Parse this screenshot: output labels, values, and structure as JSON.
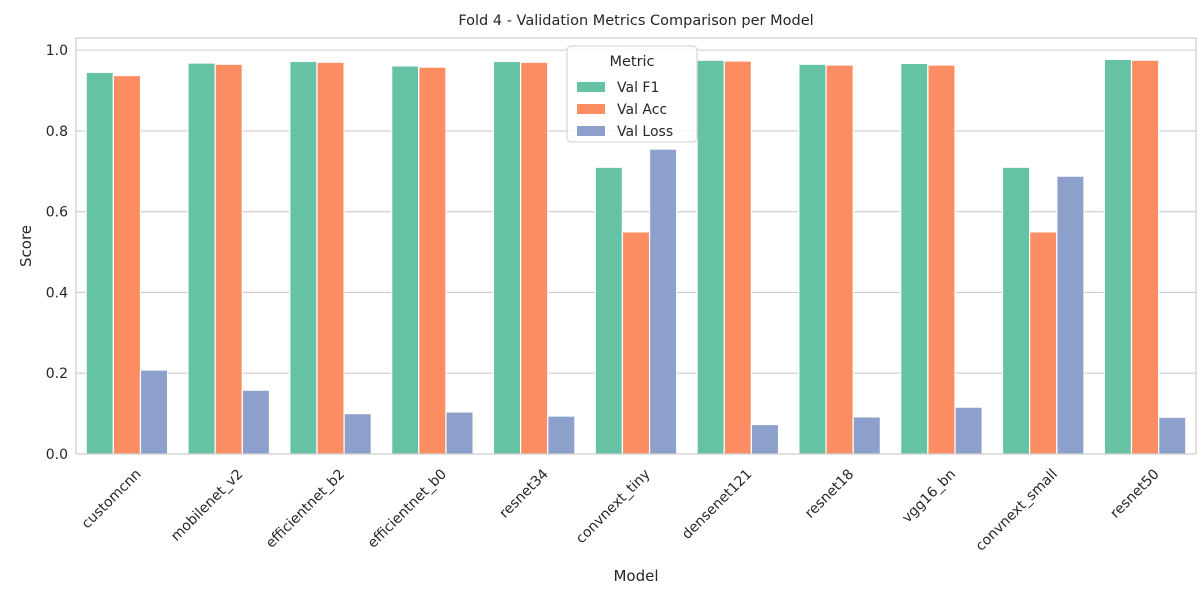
{
  "chart_data": {
    "type": "bar",
    "title": "Fold 4 - Validation Metrics Comparison per Model",
    "xlabel": "Model",
    "ylabel": "Score",
    "ylim": [
      0,
      1.03
    ],
    "yticks": [
      "0.0",
      "0.2",
      "0.4",
      "0.6",
      "0.8",
      "1.0"
    ],
    "grid": true,
    "legend_title": "Metric",
    "legend_position": "top-center",
    "categories": [
      "customcnn",
      "mobilenet_v2",
      "efficientnet_b2",
      "efficientnet_b0",
      "resnet34",
      "convnext_tiny",
      "densenet121",
      "resnet18",
      "vgg16_bn",
      "convnext_small",
      "resnet50"
    ],
    "series": [
      {
        "name": "Val F1",
        "color": "#66c2a5",
        "values": [
          0.945,
          0.968,
          0.972,
          0.961,
          0.972,
          0.71,
          0.975,
          0.965,
          0.967,
          0.71,
          0.977
        ]
      },
      {
        "name": "Val Acc",
        "color": "#fc8d62",
        "values": [
          0.937,
          0.965,
          0.97,
          0.958,
          0.97,
          0.55,
          0.973,
          0.963,
          0.963,
          0.55,
          0.975
        ]
      },
      {
        "name": "Val Loss",
        "color": "#8da0cb",
        "values": [
          0.208,
          0.158,
          0.1,
          0.104,
          0.094,
          0.755,
          0.073,
          0.092,
          0.116,
          0.688,
          0.091
        ]
      }
    ]
  }
}
